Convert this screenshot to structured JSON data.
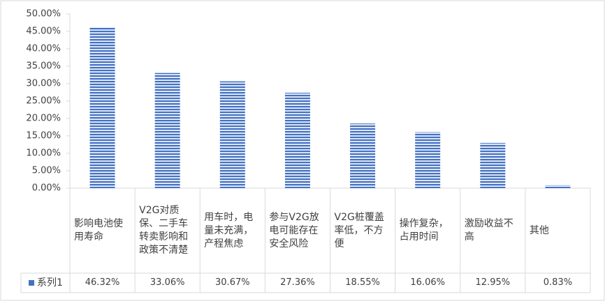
{
  "chart_data": {
    "type": "bar",
    "categories": [
      "影响电池使用寿命",
      "V2G对质保、二手车转卖影响和政策不清楚",
      "用车时，电量未充满，产程焦虑",
      "参与V2G放电可能存在安全风险",
      "V2G桩覆盖率低，不方便",
      "操作复杂，占用时间",
      "激励收益不高",
      "其他"
    ],
    "series": [
      {
        "name": "系列1",
        "color": "#4472c4",
        "values": [
          46.32,
          33.06,
          30.67,
          27.36,
          18.55,
          16.06,
          12.95,
          0.83
        ],
        "value_labels": [
          "46.32%",
          "33.06%",
          "30.67%",
          "27.36%",
          "18.55%",
          "16.06%",
          "12.95%",
          "0.83%"
        ]
      }
    ],
    "ylim": [
      0,
      50
    ],
    "yticks": [
      {
        "value": 0,
        "label": "0.00%"
      },
      {
        "value": 5,
        "label": "5.00%"
      },
      {
        "value": 10,
        "label": "10.00%"
      },
      {
        "value": 15,
        "label": "15.00%"
      },
      {
        "value": 20,
        "label": "20.00%"
      },
      {
        "value": 25,
        "label": "25.00%"
      },
      {
        "value": 30,
        "label": "30.00%"
      },
      {
        "value": 35,
        "label": "35.00%"
      },
      {
        "value": 40,
        "label": "40.00%"
      },
      {
        "value": 45,
        "label": "45.00%"
      },
      {
        "value": 50,
        "label": "50.00%"
      }
    ],
    "grid": false
  }
}
